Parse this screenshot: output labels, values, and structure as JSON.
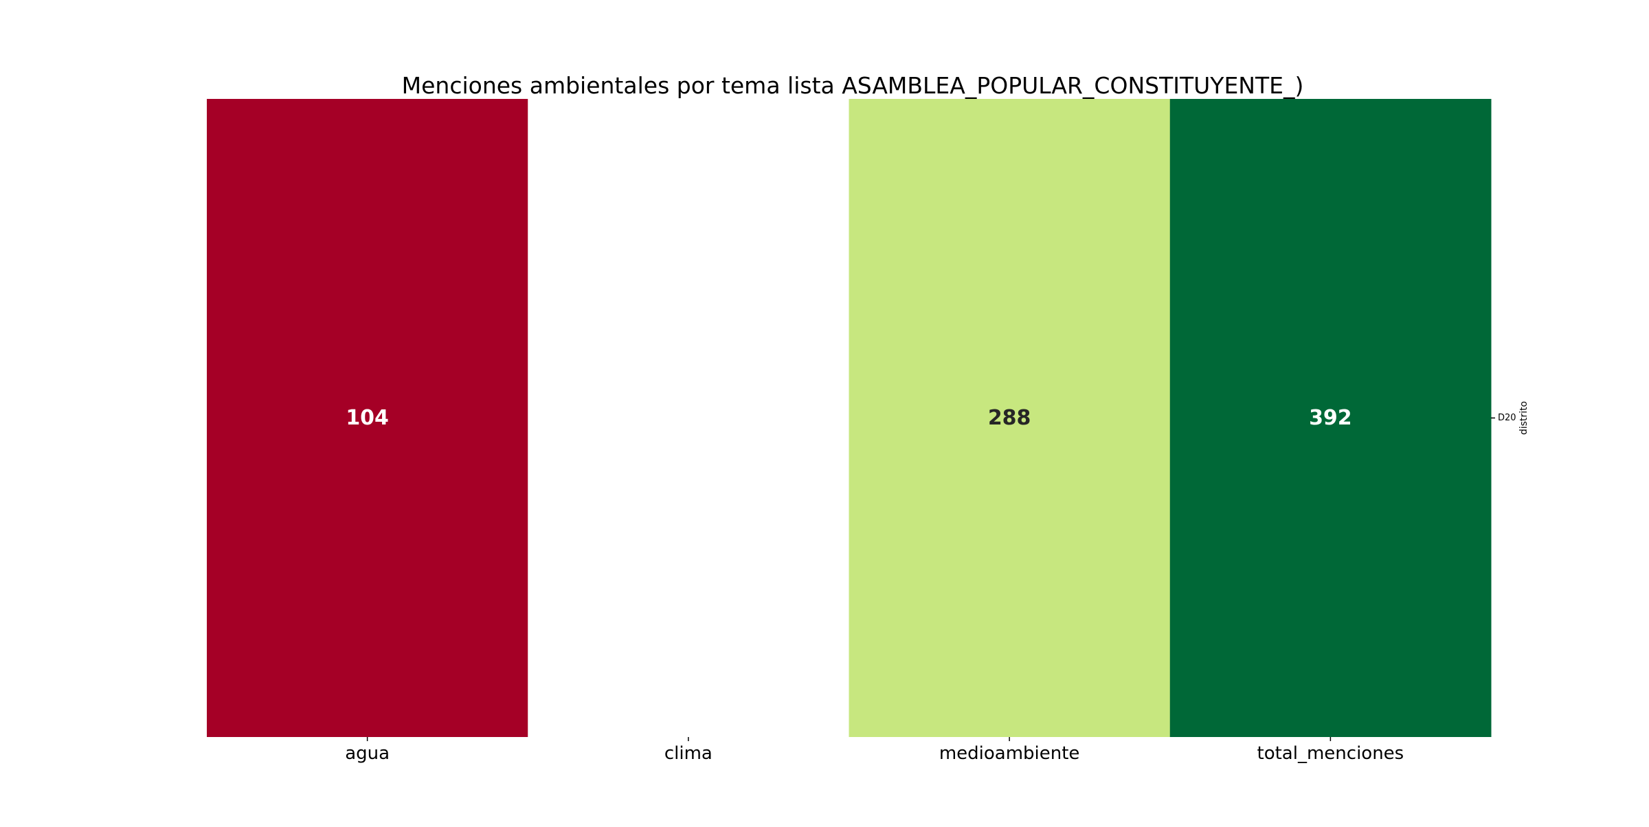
{
  "chart_data": {
    "type": "heatmap",
    "title": "Menciones ambientales por tema lista ASAMBLEA_POPULAR_CONSTITUYENTE_)",
    "xlabel": "",
    "ylabel": "distrito",
    "columns": [
      "agua",
      "clima",
      "medioambiente",
      "total_menciones"
    ],
    "rows": [
      "D20"
    ],
    "values": [
      [
        104,
        null,
        288,
        392
      ]
    ],
    "cell_labels": [
      [
        "104",
        "",
        "288",
        "392"
      ]
    ],
    "cell_colors": [
      [
        "#a50026",
        "#ffffff",
        "#c7e77f",
        "#006837"
      ]
    ],
    "label_colors": [
      [
        "#ffffff",
        "#262626",
        "#262626",
        "#ffffff"
      ]
    ],
    "colormap": "RdYlGn",
    "colorbar": false,
    "y_axis_side": "right"
  }
}
